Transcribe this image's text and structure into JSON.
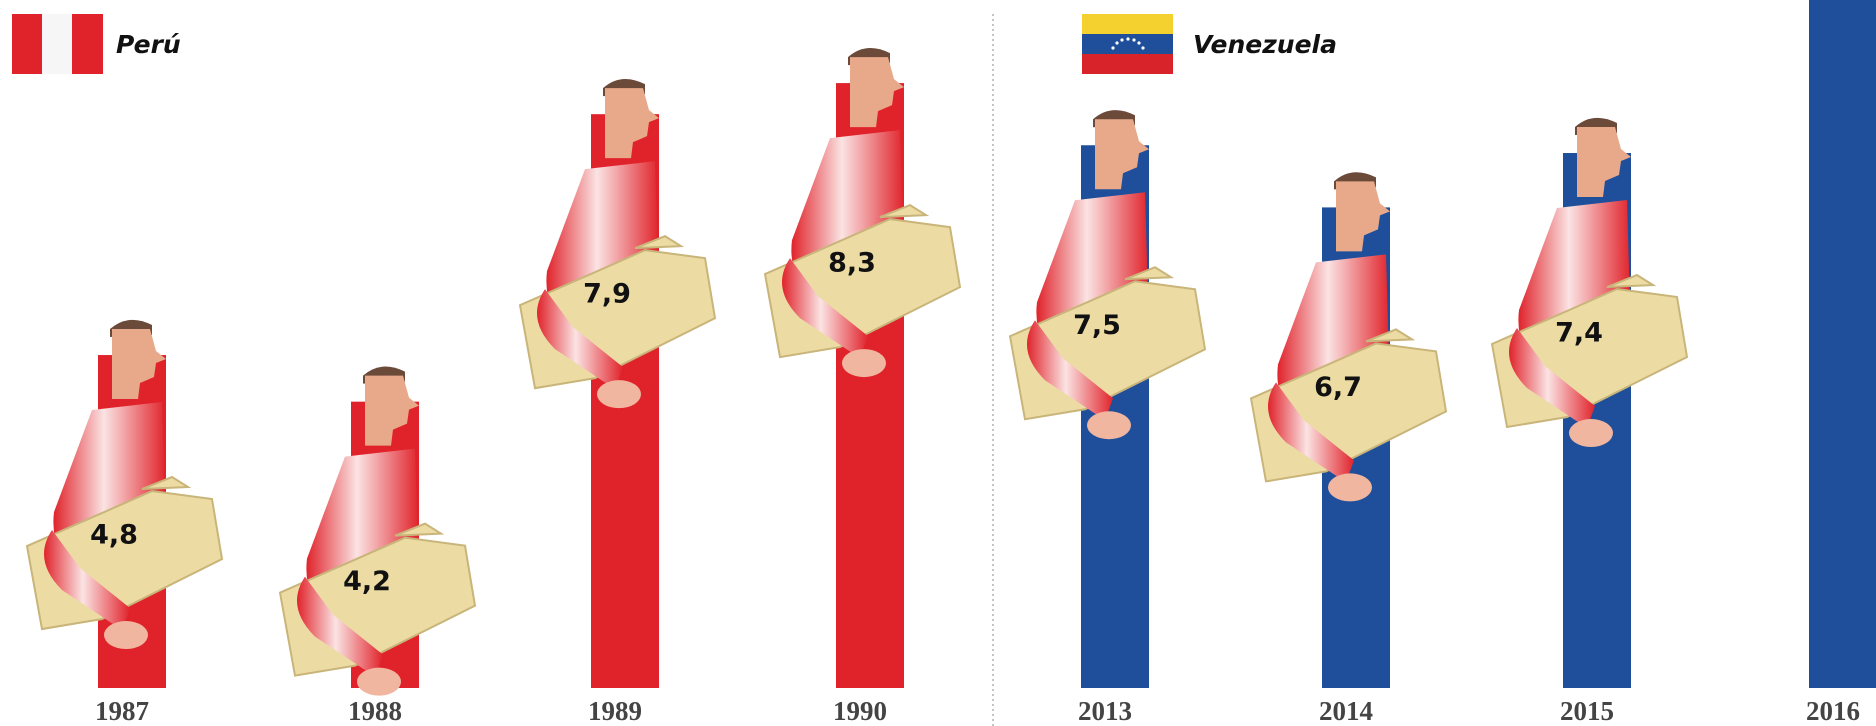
{
  "chart_data": [
    {
      "type": "bar",
      "title": "Perú",
      "color": "#e0232b",
      "categories": [
        "1987",
        "1988",
        "1989",
        "1990"
      ],
      "values": [
        4.8,
        4.2,
        7.9,
        8.3
      ],
      "value_labels": [
        "4,8",
        "4,2",
        "7,9",
        "8,3"
      ]
    },
    {
      "type": "bar",
      "title": "Venezuela",
      "color": "#1f4e9a",
      "categories": [
        "2013",
        "2014",
        "2015",
        "2016"
      ],
      "values": [
        7.5,
        6.7,
        7.4,
        null
      ],
      "value_labels": [
        "7,5",
        "6,7",
        "7,4",
        null
      ]
    }
  ]
}
